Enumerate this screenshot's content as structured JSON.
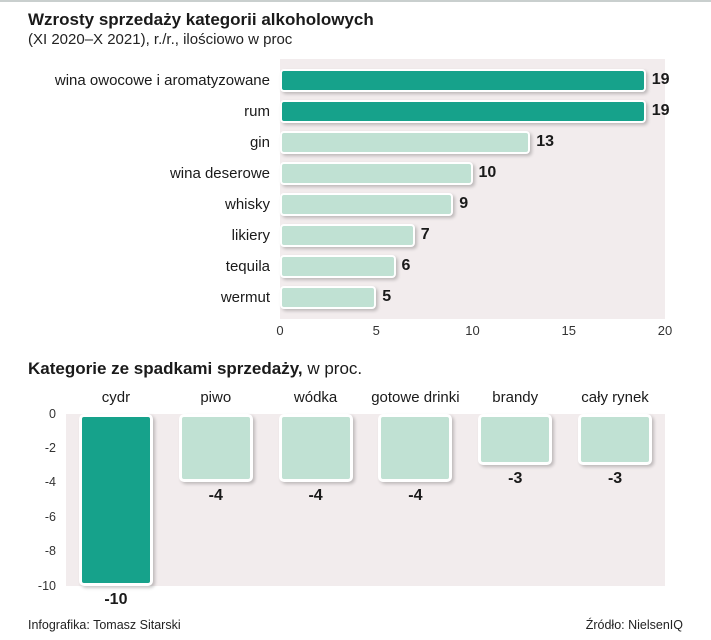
{
  "colors": {
    "dark_teal": "#16a28b",
    "light_mint": "#c0e1d3",
    "plot_bg": "#f2eced"
  },
  "footer": {
    "credit": "Infografika: Tomasz Sitarski",
    "source": "Źródło: NielsenIQ"
  },
  "chart_data": [
    {
      "type": "bar",
      "orientation": "horizontal",
      "title": "Wzrosty sprzedaży kategorii alkoholowych",
      "subtitle": "(XI 2020–X 2021), r./r., ilościowo w proc",
      "categories": [
        "wina owocowe i aromatyzowane",
        "rum",
        "gin",
        "wina deserowe",
        "whisky",
        "likiery",
        "tequila",
        "wermut"
      ],
      "values": [
        19,
        19,
        13,
        10,
        9,
        7,
        6,
        5
      ],
      "xlim": [
        0,
        20
      ],
      "xticks": [
        0,
        5,
        10,
        15,
        20
      ],
      "highlight_indices": [
        0,
        1
      ],
      "grid": false,
      "legend": false
    },
    {
      "type": "bar",
      "orientation": "vertical",
      "title_bold": "Kategorie ze spadkami sprzedaży,",
      "title_rest": " w proc.",
      "categories": [
        "cydr",
        "piwo",
        "wódka",
        "gotowe drinki",
        "brandy",
        "cały rynek"
      ],
      "values": [
        -10,
        -4,
        -4,
        -4,
        -3,
        -3
      ],
      "ylim": [
        -10,
        0
      ],
      "yticks": [
        0,
        -2,
        -4,
        -6,
        -8,
        -10
      ],
      "highlight_indices": [
        0
      ],
      "grid": false,
      "legend": false
    }
  ]
}
